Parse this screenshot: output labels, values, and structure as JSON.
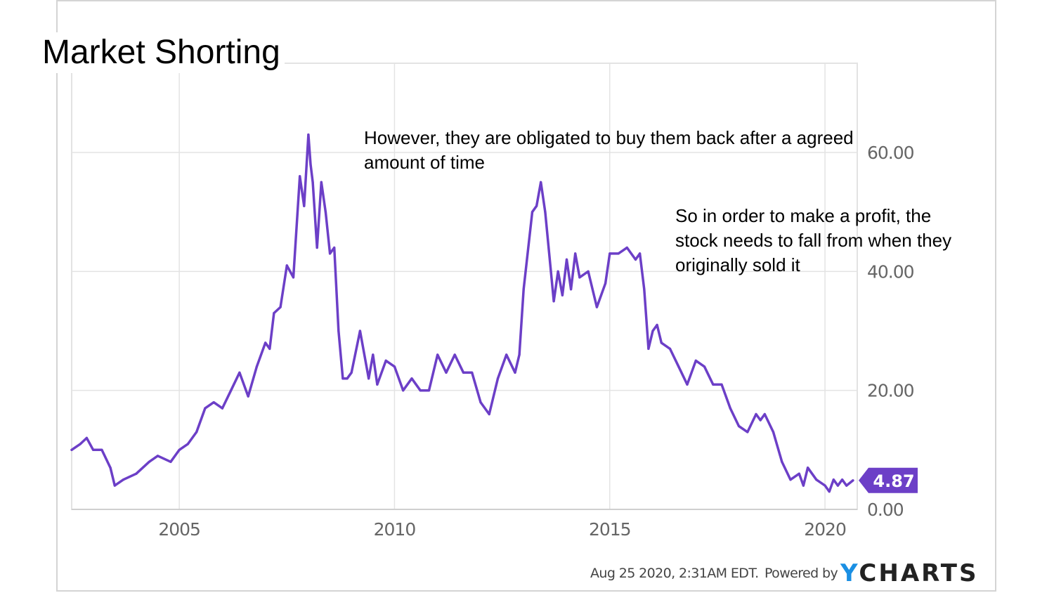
{
  "slide": {
    "title": "Market Shorting",
    "annotation_1": "However, they are obligated to buy them back after a agreed amount of time",
    "annotation_2": "So in order to make a profit, the stock needs to fall from when they originally sold it"
  },
  "footer": {
    "timestamp": "Aug 25 2020, 2:31AM EDT.",
    "powered_by": "Powered by",
    "logo_y": "Y",
    "logo_rest": "CHARTS"
  },
  "colors": {
    "line": "#6c3fc7",
    "grid": "#e3e3e3",
    "axis_text": "#666666",
    "badge": "#6c3fc7",
    "logo_accent": "#1a8fe3"
  },
  "chart_data": {
    "type": "line",
    "title": "",
    "xlabel": "",
    "ylabel": "",
    "xlim": [
      2002.5,
      2020.75
    ],
    "ylim": [
      0,
      75
    ],
    "x_ticks": [
      2005,
      2010,
      2015,
      2020
    ],
    "x_tick_labels": [
      "2005",
      "2010",
      "2015",
      "2020"
    ],
    "y_ticks": [
      0,
      20,
      40,
      60
    ],
    "y_tick_labels": [
      "0.00",
      "20.00",
      "40.00",
      "60.00"
    ],
    "grid": true,
    "last_value_label": "4.87",
    "series": [
      {
        "x": [
          2002.5,
          2002.7,
          2002.85,
          2003.0,
          2003.2,
          2003.4,
          2003.5,
          2003.7,
          2004.0,
          2004.3,
          2004.5,
          2004.8,
          2005.0,
          2005.2,
          2005.4,
          2005.6,
          2005.8,
          2006.0,
          2006.2,
          2006.4,
          2006.6,
          2006.8,
          2007.0,
          2007.1,
          2007.2,
          2007.35,
          2007.5,
          2007.65,
          2007.8,
          2007.9,
          2008.0,
          2008.05,
          2008.1,
          2008.2,
          2008.3,
          2008.4,
          2008.5,
          2008.6,
          2008.7,
          2008.8,
          2008.9,
          2009.0,
          2009.2,
          2009.4,
          2009.5,
          2009.6,
          2009.8,
          2010.0,
          2010.2,
          2010.4,
          2010.6,
          2010.8,
          2011.0,
          2011.2,
          2011.4,
          2011.6,
          2011.8,
          2012.0,
          2012.2,
          2012.4,
          2012.6,
          2012.8,
          2012.9,
          2013.0,
          2013.2,
          2013.3,
          2013.4,
          2013.5,
          2013.7,
          2013.8,
          2013.9,
          2014.0,
          2014.1,
          2014.2,
          2014.3,
          2014.5,
          2014.7,
          2014.9,
          2015.0,
          2015.2,
          2015.4,
          2015.6,
          2015.7,
          2015.8,
          2015.9,
          2016.0,
          2016.1,
          2016.2,
          2016.4,
          2016.6,
          2016.8,
          2017.0,
          2017.2,
          2017.4,
          2017.6,
          2017.8,
          2018.0,
          2018.2,
          2018.4,
          2018.5,
          2018.6,
          2018.8,
          2019.0,
          2019.2,
          2019.4,
          2019.5,
          2019.6,
          2019.8,
          2020.0,
          2020.1,
          2020.2,
          2020.3,
          2020.4,
          2020.5,
          2020.65
        ],
        "values": [
          10,
          11,
          12,
          10,
          10,
          7,
          4,
          5,
          6,
          8,
          9,
          8,
          10,
          11,
          13,
          17,
          18,
          17,
          20,
          23,
          19,
          24,
          28,
          27,
          33,
          34,
          41,
          39,
          56,
          51,
          63,
          58,
          55,
          44,
          55,
          50,
          43,
          44,
          30,
          22,
          22,
          23,
          30,
          22,
          26,
          21,
          25,
          24,
          20,
          22,
          20,
          20,
          26,
          23,
          26,
          23,
          23,
          18,
          16,
          22,
          26,
          23,
          26,
          37,
          50,
          51,
          55,
          50,
          35,
          40,
          36,
          42,
          37,
          43,
          39,
          40,
          34,
          38,
          43,
          43,
          44,
          42,
          43,
          37,
          27,
          30,
          31,
          28,
          27,
          24,
          21,
          25,
          24,
          21,
          21,
          17,
          14,
          13,
          16,
          15,
          16,
          13,
          8,
          5,
          6,
          4,
          7,
          5,
          4,
          3,
          5,
          4,
          5,
          4,
          4.87
        ]
      }
    ]
  }
}
